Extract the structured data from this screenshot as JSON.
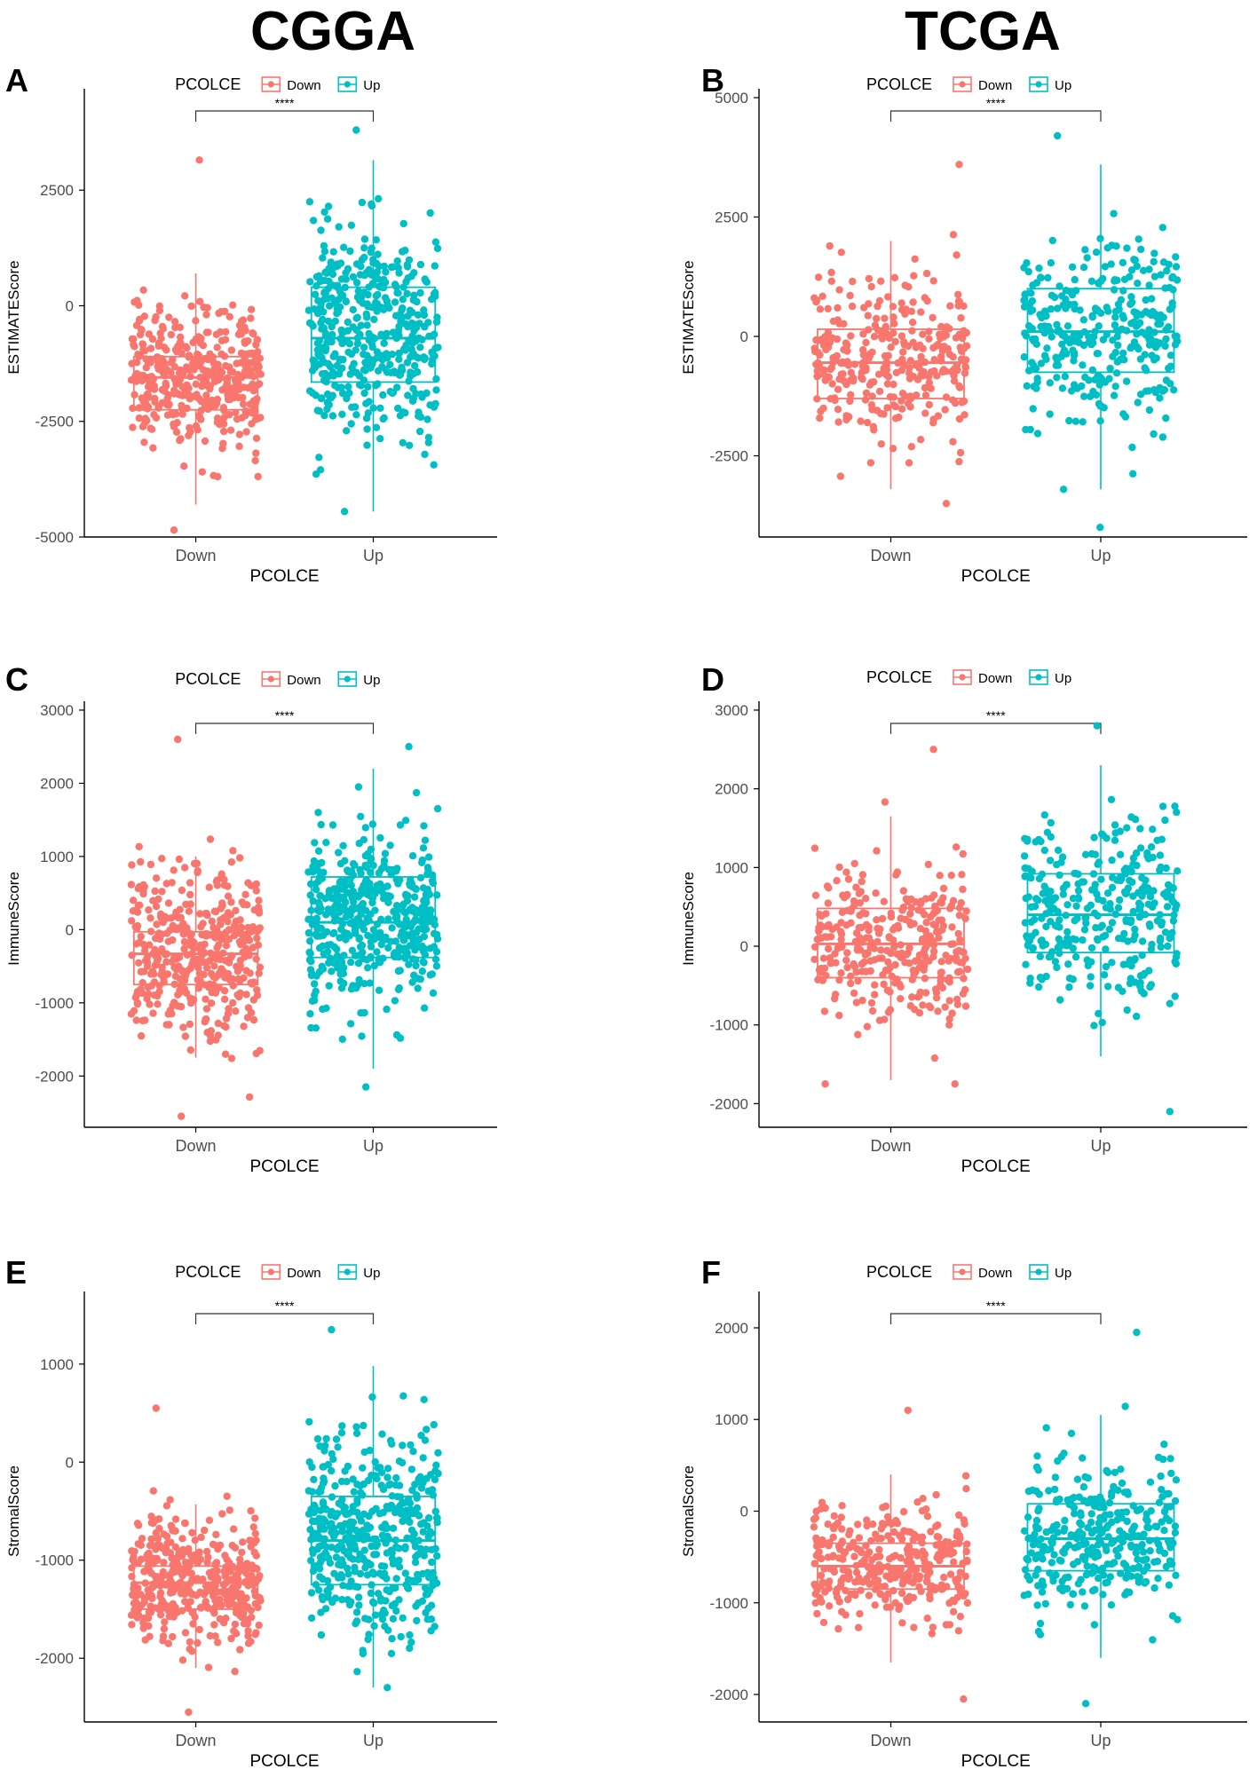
{
  "figure": {
    "columns": [
      "CGGA",
      "TCGA"
    ]
  },
  "colors": {
    "down": "#F8766D",
    "up": "#00BFC4",
    "axis": "#000000",
    "tick_text": "#4D4D4D"
  },
  "chart_data": [
    {
      "panel": "A",
      "column": "CGGA",
      "type": "box",
      "legend": {
        "title": "PCOLCE",
        "entries": [
          "Down",
          "Up"
        ],
        "placement": "top"
      },
      "xlabel": "PCOLCE",
      "ylabel": "ESTIMATEScore",
      "categories": [
        "Down",
        "Up"
      ],
      "ylim": [
        -5000,
        4500
      ],
      "yticks": [
        -5000,
        -2500,
        0,
        2500
      ],
      "significance": "****",
      "boxes": [
        {
          "group": "Down",
          "min": -4300,
          "q1": -2250,
          "median": -1550,
          "q3": -1100,
          "max": 700
        },
        {
          "group": "Up",
          "min": -4450,
          "q1": -1650,
          "median": -700,
          "q3": 400,
          "max": 3150
        }
      ],
      "points": [
        {
          "group": "Down",
          "n": 420,
          "center": -1550,
          "spread": 1000,
          "min": -4850,
          "max": 3150
        },
        {
          "group": "Up",
          "n": 460,
          "center": -600,
          "spread": 1450,
          "min": -4450,
          "max": 3800
        }
      ]
    },
    {
      "panel": "B",
      "column": "TCGA",
      "type": "box",
      "legend": {
        "title": "PCOLCE",
        "entries": [
          "Down",
          "Up"
        ],
        "placement": "top"
      },
      "xlabel": "PCOLCE",
      "ylabel": "ESTIMATEScore",
      "categories": [
        "Down",
        "Up"
      ],
      "ylim": [
        -4200,
        5000
      ],
      "yticks": [
        -2500,
        0,
        2500,
        5000
      ],
      "significance": "****",
      "boxes": [
        {
          "group": "Down",
          "min": -3200,
          "q1": -1300,
          "median": -550,
          "q3": 150,
          "max": 2000
        },
        {
          "group": "Up",
          "min": -3200,
          "q1": -750,
          "median": 100,
          "q3": 1000,
          "max": 3600
        }
      ],
      "points": [
        {
          "group": "Down",
          "n": 330,
          "center": -550,
          "spread": 1050,
          "min": -3500,
          "max": 3600
        },
        {
          "group": "Up",
          "n": 330,
          "center": 150,
          "spread": 1300,
          "min": -4000,
          "max": 4200
        }
      ]
    },
    {
      "panel": "C",
      "column": "CGGA",
      "type": "box",
      "legend": {
        "title": "PCOLCE",
        "entries": [
          "Down",
          "Up"
        ],
        "placement": "top"
      },
      "xlabel": "PCOLCE",
      "ylabel": "ImmuneScore",
      "categories": [
        "Down",
        "Up"
      ],
      "ylim": [
        -2700,
        3000
      ],
      "yticks": [
        -2000,
        -1000,
        0,
        1000,
        2000,
        3000
      ],
      "significance": "****",
      "boxes": [
        {
          "group": "Down",
          "min": -1750,
          "q1": -750,
          "median": -330,
          "q3": -30,
          "max": 1000
        },
        {
          "group": "Up",
          "min": -1900,
          "q1": -380,
          "median": 100,
          "q3": 720,
          "max": 2200
        }
      ],
      "points": [
        {
          "group": "Down",
          "n": 420,
          "center": -330,
          "spread": 720,
          "min": -2550,
          "max": 2600
        },
        {
          "group": "Up",
          "n": 460,
          "center": 150,
          "spread": 800,
          "min": -2150,
          "max": 2500
        }
      ]
    },
    {
      "panel": "D",
      "column": "TCGA",
      "type": "box",
      "legend": {
        "title": "PCOLCE",
        "entries": [
          "Down",
          "Up"
        ],
        "placement": "top"
      },
      "xlabel": "PCOLCE",
      "ylabel": "ImmuneScore",
      "categories": [
        "Down",
        "Up"
      ],
      "ylim": [
        -2300,
        3000
      ],
      "yticks": [
        -2000,
        -1000,
        0,
        1000,
        2000,
        3000
      ],
      "significance": "****",
      "boxes": [
        {
          "group": "Down",
          "min": -1700,
          "q1": -400,
          "median": 30,
          "q3": 480,
          "max": 1650
        },
        {
          "group": "Up",
          "min": -1400,
          "q1": -80,
          "median": 400,
          "q3": 920,
          "max": 2300
        }
      ],
      "points": [
        {
          "group": "Down",
          "n": 330,
          "center": 30,
          "spread": 650,
          "min": -1750,
          "max": 2500
        },
        {
          "group": "Up",
          "n": 330,
          "center": 420,
          "spread": 750,
          "min": -2100,
          "max": 2800
        }
      ]
    },
    {
      "panel": "E",
      "column": "CGGA",
      "type": "box",
      "legend": {
        "title": "PCOLCE",
        "entries": [
          "Down",
          "Up"
        ],
        "placement": "top"
      },
      "xlabel": "PCOLCE",
      "ylabel": "StromalScore",
      "categories": [
        "Down",
        "Up"
      ],
      "ylim": [
        -2650,
        1650
      ],
      "yticks": [
        -2000,
        -1000,
        0,
        1000
      ],
      "significance": "****",
      "boxes": [
        {
          "group": "Down",
          "min": -2100,
          "q1": -1500,
          "median": -1230,
          "q3": -1060,
          "max": -430
        },
        {
          "group": "Up",
          "min": -2300,
          "q1": -1250,
          "median": -800,
          "q3": -350,
          "max": 980
        }
      ],
      "points": [
        {
          "group": "Down",
          "n": 420,
          "center": -1250,
          "spread": 420,
          "min": -2550,
          "max": 550
        },
        {
          "group": "Up",
          "n": 460,
          "center": -750,
          "spread": 650,
          "min": -2300,
          "max": 1350
        }
      ]
    },
    {
      "panel": "F",
      "column": "TCGA",
      "type": "box",
      "legend": {
        "title": "PCOLCE",
        "entries": [
          "Down",
          "Up"
        ],
        "placement": "top"
      },
      "xlabel": "PCOLCE",
      "ylabel": "StromalScore",
      "categories": [
        "Down",
        "Up"
      ],
      "ylim": [
        -2300,
        2300
      ],
      "yticks": [
        -2000,
        -1000,
        0,
        1000,
        2000
      ],
      "significance": "****",
      "boxes": [
        {
          "group": "Down",
          "min": -1650,
          "q1": -850,
          "median": -600,
          "q3": -350,
          "max": 400
        },
        {
          "group": "Up",
          "min": -1600,
          "q1": -650,
          "median": -300,
          "q3": 80,
          "max": 1050
        }
      ],
      "points": [
        {
          "group": "Down",
          "n": 330,
          "center": -600,
          "spread": 430,
          "min": -2050,
          "max": 1100
        },
        {
          "group": "Up",
          "n": 330,
          "center": -280,
          "spread": 560,
          "min": -2100,
          "max": 1950
        }
      ]
    }
  ]
}
